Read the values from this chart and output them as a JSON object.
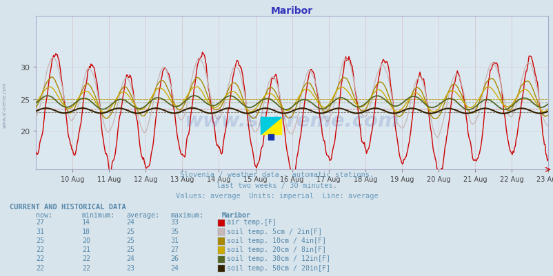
{
  "title": "Maribor",
  "title_color": "#3333bb",
  "subtitle1": "Slovenia / weather data - automatic stations.",
  "subtitle2": "last two weeks / 30 minutes.",
  "subtitle3": "Values: average  Units: imperial  Line: average",
  "subtitle_color": "#6699bb",
  "watermark": "www.si-vreme.com",
  "watermark_color": "#3355aa",
  "watermark_alpha": 0.18,
  "x_labels": [
    "10 Aug",
    "11 Aug",
    "12 Aug",
    "13 Aug",
    "14 Aug",
    "15 Aug",
    "16 Aug",
    "17 Aug",
    "18 Aug",
    "19 Aug",
    "20 Aug",
    "21 Aug",
    "22 Aug",
    "23 Aug"
  ],
  "ylim_min": 14,
  "ylim_max": 38,
  "yticks": [
    20,
    25,
    30
  ],
  "bg_color": "#d8e4ec",
  "plot_bg": "#dce8f0",
  "grid_h_color": "#cc8888",
  "grid_v_color": "#cc8888",
  "series": [
    {
      "label": "air temp.[F]",
      "color": "#cc0000",
      "lw": 1.0,
      "avg": 23.5
    },
    {
      "label": "soil temp. 5cm / 2in[F]",
      "color": "#c8b8b8",
      "lw": 1.0,
      "avg": 25.0
    },
    {
      "label": "soil temp. 10cm / 4in[F]",
      "color": "#aa8800",
      "lw": 1.0,
      "avg": 25.0
    },
    {
      "label": "soil temp. 20cm / 8in[F]",
      "color": "#ccaa00",
      "lw": 1.0,
      "avg": 25.0
    },
    {
      "label": "soil temp. 30cm / 12in[F]",
      "color": "#556622",
      "lw": 1.3,
      "avg": 24.5
    },
    {
      "label": "soil temp. 50cm / 20in[F]",
      "color": "#332200",
      "lw": 1.5,
      "avg": 23.0
    }
  ],
  "table_color": "#5588aa",
  "table_values": [
    {
      "now": 27,
      "min": 14,
      "avg": 24,
      "max": 33
    },
    {
      "now": 31,
      "min": 18,
      "avg": 25,
      "max": 35
    },
    {
      "now": 25,
      "min": 20,
      "avg": 25,
      "max": 31
    },
    {
      "now": 22,
      "min": 21,
      "avg": 25,
      "max": 27
    },
    {
      "now": 22,
      "min": 22,
      "avg": 24,
      "max": 26
    },
    {
      "now": 22,
      "min": 22,
      "avg": 23,
      "max": 24
    }
  ]
}
